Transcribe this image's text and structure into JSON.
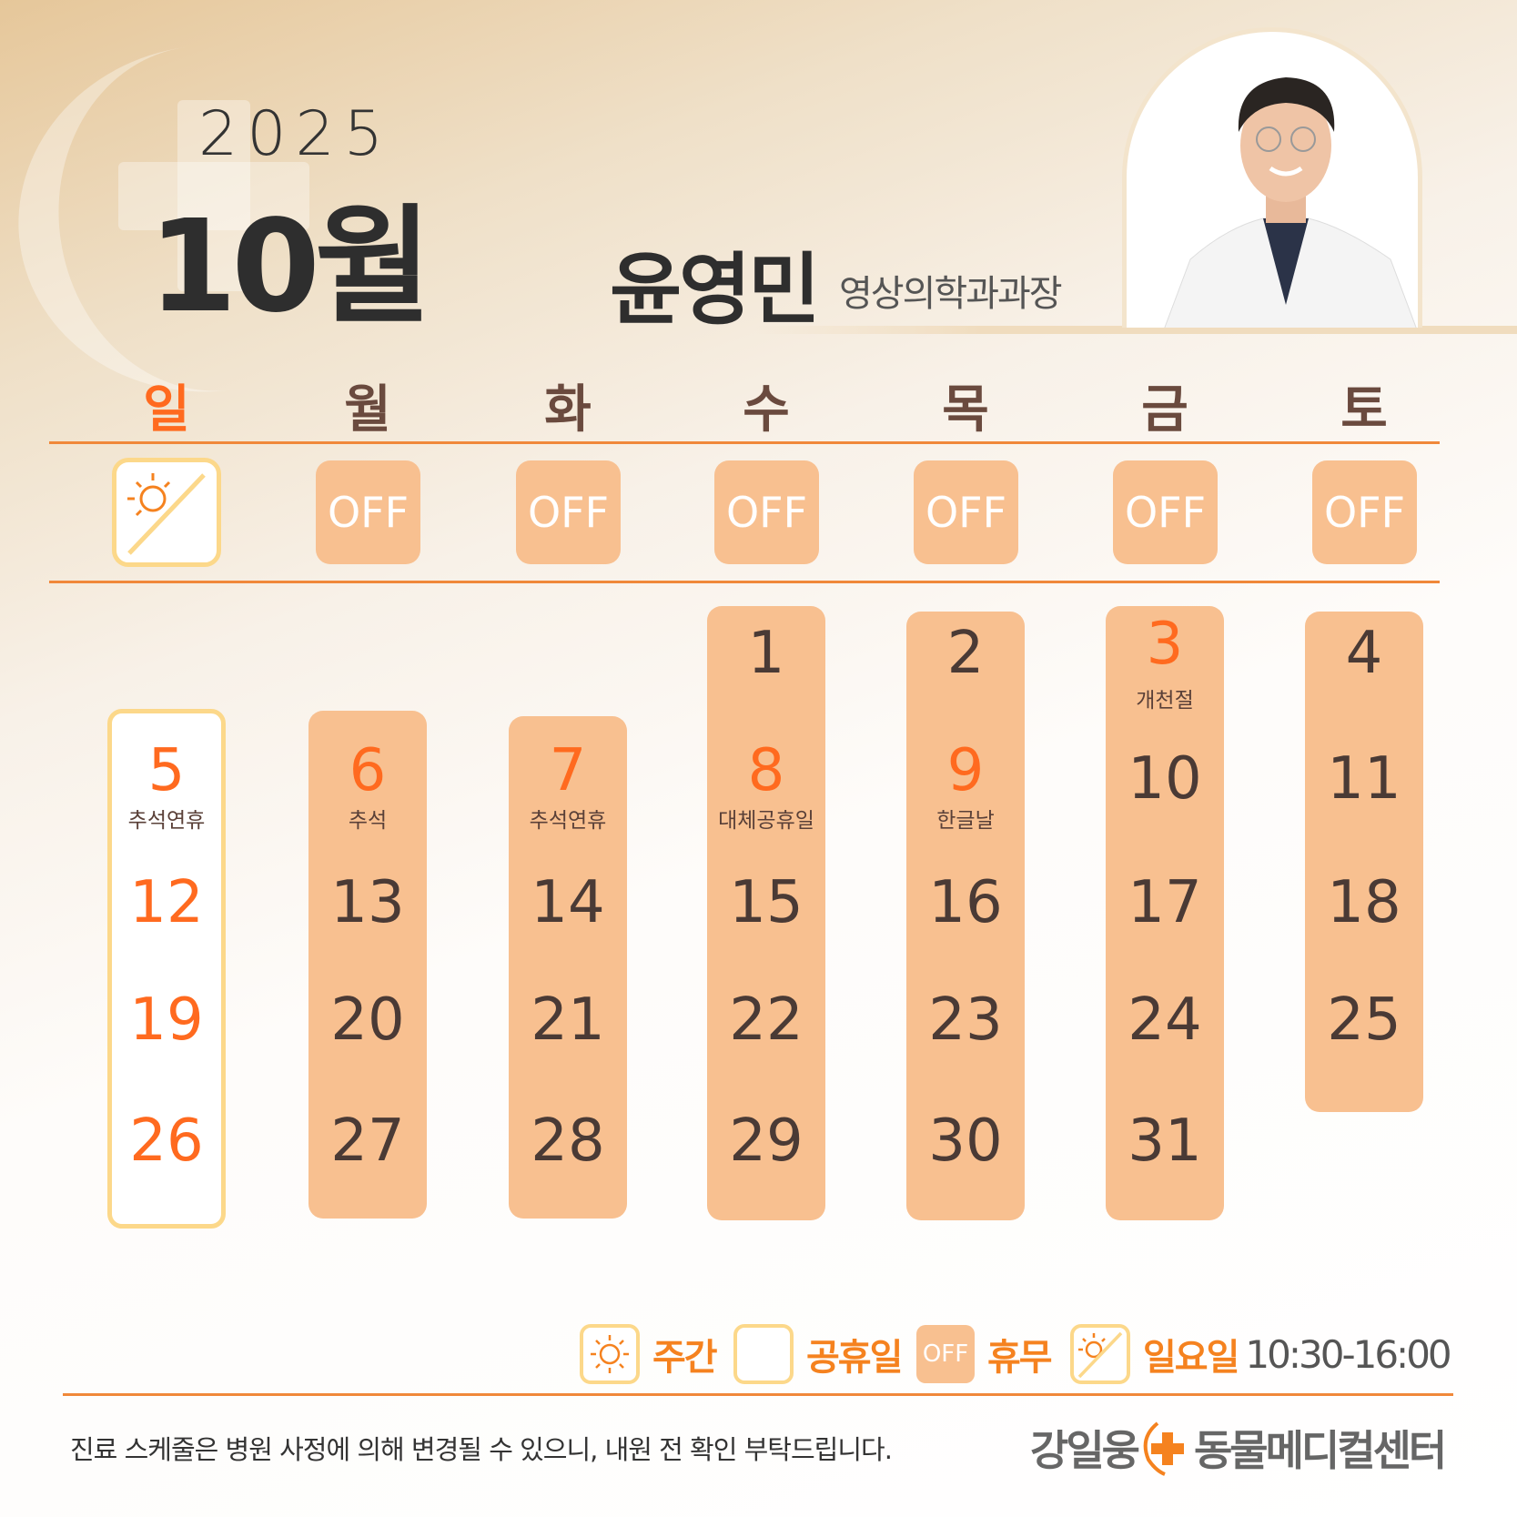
{
  "header": {
    "year": "2025",
    "month": "10월",
    "doctor_name": "윤영민",
    "doctor_title": "영상의학과과장"
  },
  "weekdays": [
    "일",
    "월",
    "화",
    "수",
    "목",
    "금",
    "토"
  ],
  "hours_row": {
    "sunday_icon": "sun-slash-icon",
    "off_label": "OFF"
  },
  "calendar": {
    "days": [
      {
        "d": "1",
        "col": 3,
        "row": 0
      },
      {
        "d": "2",
        "col": 4,
        "row": 0
      },
      {
        "d": "3",
        "col": 5,
        "row": 0,
        "holiday": true,
        "label": "개천절"
      },
      {
        "d": "4",
        "col": 6,
        "row": 0
      },
      {
        "d": "5",
        "col": 0,
        "row": 1,
        "holiday": true,
        "label": "추석연휴"
      },
      {
        "d": "6",
        "col": 1,
        "row": 1,
        "holiday": true,
        "label": "추석"
      },
      {
        "d": "7",
        "col": 2,
        "row": 1,
        "holiday": true,
        "label": "추석연휴"
      },
      {
        "d": "8",
        "col": 3,
        "row": 1,
        "holiday": true,
        "label": "대체공휴일"
      },
      {
        "d": "9",
        "col": 4,
        "row": 1,
        "holiday": true,
        "label": "한글날"
      },
      {
        "d": "10",
        "col": 5,
        "row": 1
      },
      {
        "d": "11",
        "col": 6,
        "row": 1
      },
      {
        "d": "12",
        "col": 0,
        "row": 2,
        "holiday": true
      },
      {
        "d": "13",
        "col": 1,
        "row": 2
      },
      {
        "d": "14",
        "col": 2,
        "row": 2
      },
      {
        "d": "15",
        "col": 3,
        "row": 2
      },
      {
        "d": "16",
        "col": 4,
        "row": 2
      },
      {
        "d": "17",
        "col": 5,
        "row": 2
      },
      {
        "d": "18",
        "col": 6,
        "row": 2
      },
      {
        "d": "19",
        "col": 0,
        "row": 3,
        "holiday": true
      },
      {
        "d": "20",
        "col": 1,
        "row": 3
      },
      {
        "d": "21",
        "col": 2,
        "row": 3
      },
      {
        "d": "22",
        "col": 3,
        "row": 3
      },
      {
        "d": "23",
        "col": 4,
        "row": 3
      },
      {
        "d": "24",
        "col": 5,
        "row": 3
      },
      {
        "d": "25",
        "col": 6,
        "row": 3
      },
      {
        "d": "26",
        "col": 0,
        "row": 4,
        "holiday": true
      },
      {
        "d": "27",
        "col": 1,
        "row": 4
      },
      {
        "d": "28",
        "col": 2,
        "row": 4
      },
      {
        "d": "29",
        "col": 3,
        "row": 4
      },
      {
        "d": "30",
        "col": 4,
        "row": 4
      },
      {
        "d": "31",
        "col": 5,
        "row": 4
      }
    ]
  },
  "legend": {
    "day": "주간",
    "holiday": "공휴일",
    "off_box": "OFF",
    "off": "휴무",
    "sunday": "일요일",
    "sunday_hours": "10:30-16:00"
  },
  "footer": {
    "note": "진료 스케줄은 병원 사정에 의해 변경될 수 있으니, 내원 전 확인 부탁드립니다.",
    "logo_left": "강일웅",
    "logo_right": "동물메디컬센터"
  },
  "colors": {
    "accent": "#f5821f",
    "holiday": "#ff6a1f",
    "off_fill": "#f8c090",
    "sunday_border": "#fcd88a"
  }
}
